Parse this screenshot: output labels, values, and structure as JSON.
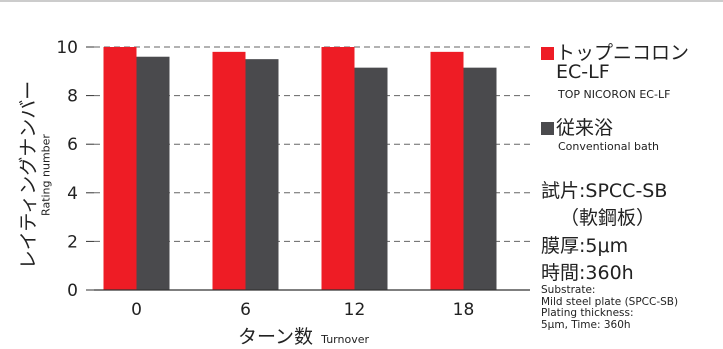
{
  "chart_data": {
    "type": "bar",
    "categories": [
      "0",
      "6",
      "12",
      "18"
    ],
    "series": [
      {
        "name": "トップニコロン EC-LF",
        "color": "#ee1c25",
        "values": [
          10.0,
          9.8,
          10.0,
          9.8
        ]
      },
      {
        "name": "従来浴",
        "color": "#4a4a4d",
        "values": [
          9.6,
          9.5,
          9.15,
          9.15
        ]
      }
    ],
    "ylim": [
      0,
      10
    ],
    "yticks": [
      "0",
      "2",
      "4",
      "6",
      "8",
      "10"
    ],
    "ylabel": "レイティングナンバー",
    "ylabel_en": "Rating number",
    "xlabel": "ターン数",
    "xlabel_en": "Turnover",
    "grid": "horizontal dashed",
    "legend_position": "right"
  },
  "legend": {
    "item1_line1": "トップニコロン",
    "item1_line2": "EC-LF",
    "item1_en": "TOP NICORON EC-LF",
    "item2": "従来浴",
    "item2_en": "Conventional bath"
  },
  "conditions": {
    "line1": "試片:SPCC-SB",
    "line2": "（軟鋼板）",
    "line3": "膜厚:5μm",
    "line4": "時間:360h"
  },
  "notes_en": {
    "line1": "Substrate:",
    "line2": "Mild steel plate (SPCC-SB)",
    "line3": "Plating thickness:",
    "line4": "5μm, Time: 360h"
  }
}
